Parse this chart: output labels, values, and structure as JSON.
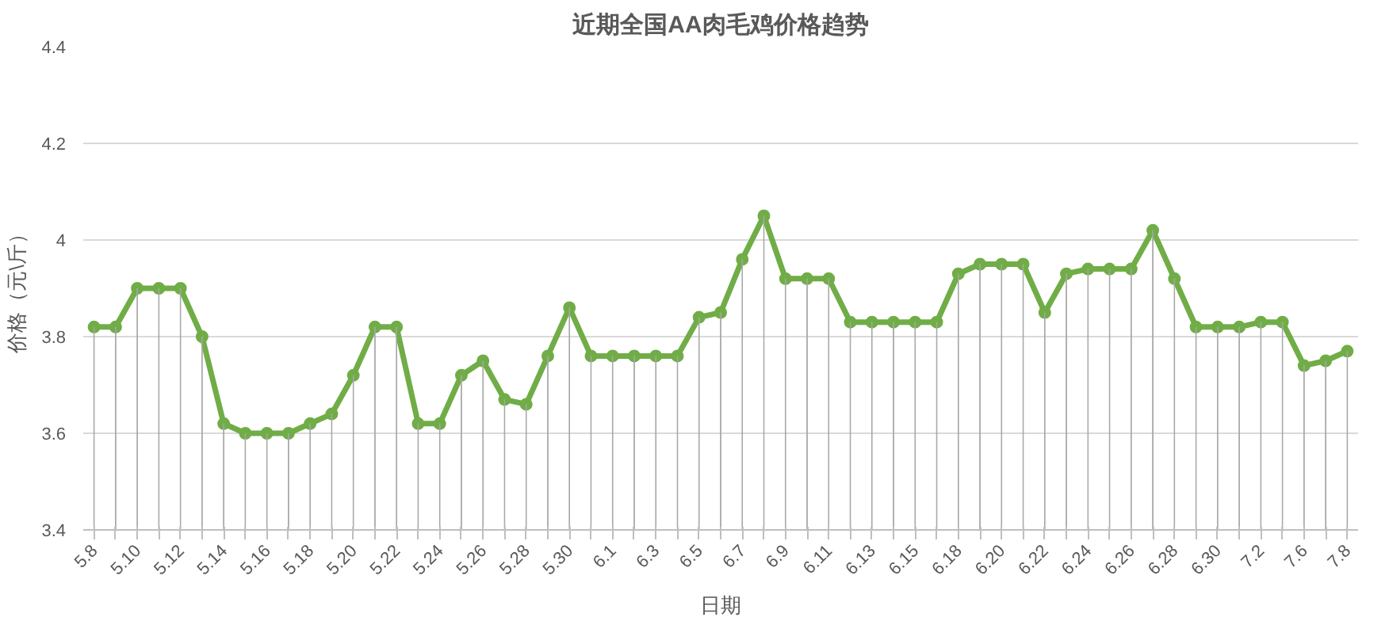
{
  "chart_data": {
    "type": "line",
    "title": "近期全国AA肉毛鸡价格趋势",
    "xlabel": "日期",
    "ylabel": "价格（元\\斤）",
    "categories": [
      "5.8",
      null,
      "5.10",
      null,
      "5.12",
      null,
      "5.14",
      null,
      "5.16",
      null,
      "5.18",
      null,
      "5.20",
      null,
      "5.22",
      null,
      "5.24",
      null,
      "5.26",
      null,
      "5.28",
      null,
      "5.30",
      null,
      "6.1",
      null,
      "6.3",
      null,
      "6.5",
      null,
      "6.7",
      null,
      "6.9",
      null,
      "6.11",
      null,
      "6.13",
      null,
      "6.15",
      null,
      "6.18",
      null,
      "6.20",
      null,
      "6.22",
      null,
      "6.24",
      null,
      "6.26",
      null,
      "6.28",
      null,
      "6.30",
      null,
      "7.2",
      null,
      "7.6",
      null,
      "7.8"
    ],
    "series": [
      {
        "type": "bar",
        "color": "#a6a6a6",
        "values": [
          3.82,
          3.82,
          3.9,
          3.9,
          3.9,
          3.8,
          3.62,
          3.6,
          3.6,
          3.6,
          3.62,
          3.64,
          3.72,
          3.82,
          3.82,
          3.62,
          3.62,
          3.72,
          3.75,
          3.67,
          3.66,
          3.76,
          3.86,
          3.76,
          3.76,
          3.76,
          3.76,
          3.76,
          3.84,
          3.85,
          3.96,
          4.05,
          3.92,
          3.92,
          3.92,
          3.83,
          3.83,
          3.83,
          3.83,
          3.83,
          3.93,
          3.95,
          3.95,
          3.95,
          3.85,
          3.93,
          3.94,
          3.94,
          3.94,
          4.02,
          3.92,
          3.82,
          3.82,
          3.82,
          3.83,
          3.83,
          3.74,
          3.75,
          3.77
        ]
      },
      {
        "color": "#70ad47",
        "values": [
          3.82,
          3.82,
          3.9,
          3.9,
          3.9,
          3.8,
          3.62,
          3.6,
          3.6,
          3.6,
          3.62,
          3.64,
          3.72,
          3.82,
          3.82,
          3.62,
          3.62,
          3.72,
          3.75,
          3.67,
          3.66,
          3.76,
          3.86,
          3.76,
          3.76,
          3.76,
          3.76,
          3.76,
          3.84,
          3.85,
          3.96,
          4.05,
          3.92,
          3.92,
          3.92,
          3.83,
          3.83,
          3.83,
          3.83,
          3.83,
          3.93,
          3.95,
          3.95,
          3.95,
          3.85,
          3.93,
          3.94,
          3.94,
          3.94,
          4.02,
          3.92,
          3.82,
          3.82,
          3.82,
          3.83,
          3.83,
          3.74,
          3.75,
          3.77
        ]
      }
    ],
    "ylim": [
      3.4,
      4.4
    ],
    "yticks": [
      3.4,
      3.6,
      3.8,
      4,
      4.2,
      4.4
    ],
    "grid": "y",
    "marker": "circle",
    "line_style": "solid"
  }
}
